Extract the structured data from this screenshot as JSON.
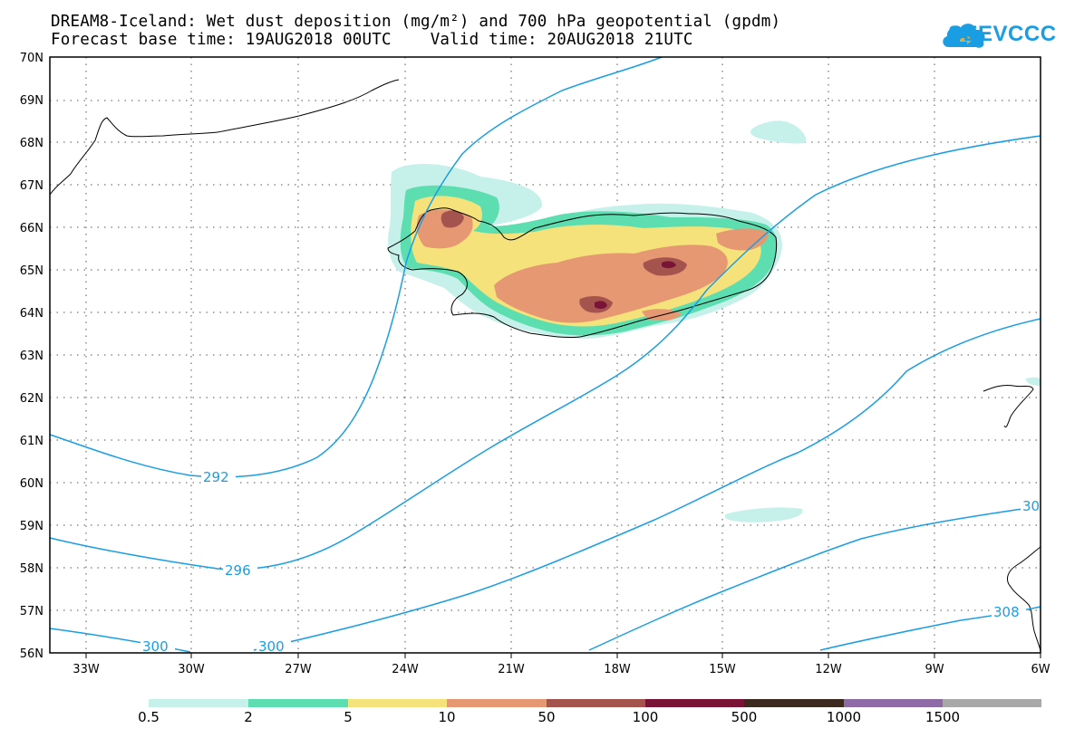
{
  "title": {
    "line1": "DREAM8-Iceland: Wet dust deposition (mg/m²) and 700 hPa geopotential (gpdm)",
    "line2": "Forecast base time: 19AUG2018 00UTC    Valid time: 20AUG2018 21UTC"
  },
  "logo": {
    "text": "SEEVCCC",
    "color": "#1a9ee3"
  },
  "axes": {
    "x_labels": [
      "33W",
      "30W",
      "27W",
      "24W",
      "21W",
      "18W",
      "15W",
      "12W",
      "9W",
      "6W"
    ],
    "y_labels": [
      "70N",
      "69N",
      "68N",
      "67N",
      "66N",
      "65N",
      "64N",
      "63N",
      "62N",
      "61N",
      "60N",
      "59N",
      "58N",
      "57N",
      "56N"
    ],
    "lon_range": [
      -34,
      -6
    ],
    "lat_range": [
      56,
      70
    ],
    "grid": "dotted"
  },
  "contours": {
    "color": "#1a9ee3",
    "labels": [
      "292",
      "296",
      "300",
      "300",
      "30",
      "308"
    ]
  },
  "legend": {
    "colors": [
      "#c6f1ea",
      "#5ddeb0",
      "#f5e27a",
      "#e69873",
      "#a5534d",
      "#7a1436",
      "#3b2a1d",
      "#8e6aa6",
      "#a8a8a8"
    ],
    "labels": [
      "0.5",
      "2",
      "5",
      "10",
      "50",
      "100",
      "500",
      "1000",
      "1500"
    ]
  }
}
